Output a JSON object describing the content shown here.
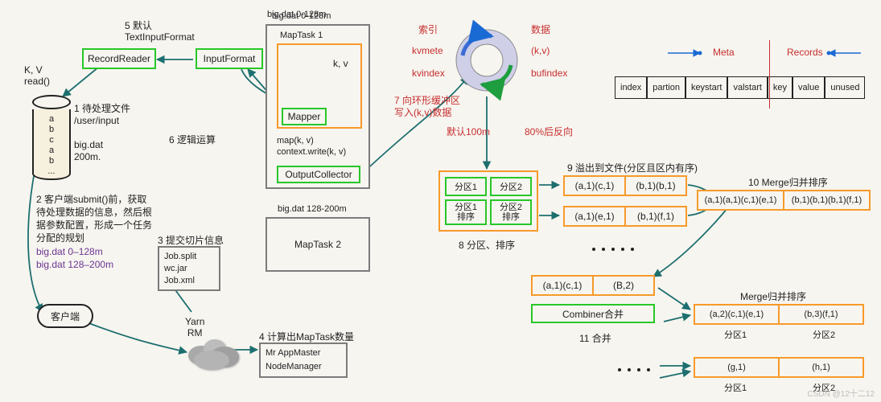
{
  "colors": {
    "green": "#28c728",
    "orange": "#f79a2a",
    "grey": "#7b7b7b",
    "red": "#c62e2e",
    "purple": "#6a3590",
    "blue": "#1a6ad4",
    "bg": "#f7f5f0",
    "cloud": "#a9a9a9",
    "ringBlue": "#3b6bd4",
    "ringGreen": "#1e9e3e"
  },
  "left": {
    "kv": "K, V\nread()",
    "cyl_letters": [
      "a",
      "b",
      "c",
      "a",
      "b",
      "..."
    ],
    "step1": "1 待处理文件\n/user/input\n\nbig.dat\n200m.",
    "step2": "2 客户端submit()前，获取\n待处理数据的信息，然后根\n据参数配置，形成一个任务\n分配的规划",
    "splits": [
      "big.dat 0–128m",
      "big.dat 128–200m"
    ],
    "client": "客户端",
    "yarn": "Yarn\nRM"
  },
  "top": {
    "step5": "5 默认\nTextInputFormat",
    "recordReader": "RecordReader",
    "inputFormat": "InputFormat",
    "step6": "6 逻辑运算"
  },
  "maptask1": {
    "title": "big.dat 0-128m",
    "sub": "MapTask 1",
    "mapper": "Mapper",
    "kv": "k, v",
    "code": "map(k, v)\ncontext.write(k, v)",
    "output": "OutputCollector"
  },
  "maptask2": {
    "title": "big.dat 128-200m",
    "sub": "MapTask 2"
  },
  "step3": {
    "title": "3 提交切片信息",
    "items": [
      "Job.split",
      "wc.jar",
      "Job.xml"
    ]
  },
  "step4": {
    "title": "4 计算出MapTask数量",
    "items": [
      "Mr AppMaster",
      "NodeManager"
    ]
  },
  "ring": {
    "left_top": "索引",
    "right_top": "数据",
    "left_mid": "kvmete",
    "right_mid": "(k,v)",
    "left_bot": "kvindex",
    "right_bot": "bufindex",
    "step7": "7 向环形缓冲区\n写入(k,v)数据",
    "below_left": "默认100m",
    "below_right": "80%后反向"
  },
  "partition": {
    "cells": [
      "分区1",
      "分区2",
      "分区1\n排序",
      "分区2\n排序"
    ],
    "caption": "8 分区、排序"
  },
  "spill": {
    "title": "9 溢出到文件(分区且区内有序)",
    "row1": [
      "(a,1)(c,1)",
      "(b,1)(b,1)"
    ],
    "row2": [
      "(a,1)(e,1)",
      "(b,1)(f,1)"
    ]
  },
  "merge10": {
    "title": "10 Merge归并排序",
    "row": [
      "(a,1)(a,1)(c,1)(e,1)",
      "(b,1)(b,1)(b,1)(f,1)"
    ]
  },
  "combine": {
    "row": [
      "(a,1)(c,1)",
      "(B,2)"
    ],
    "bar": "Combiner合并",
    "caption": "11 合并"
  },
  "mergeFinal": {
    "title": "Merge归并排序",
    "rowA": [
      "(a,2)(c,1)(e,1)",
      "(b,3)(f,1)"
    ],
    "zonesA": [
      "分区1",
      "分区2"
    ],
    "rowB": [
      "(g,1)",
      "(h,1)"
    ],
    "zonesB": [
      "分区1",
      "分区2"
    ]
  },
  "buffer": {
    "meta": "Meta",
    "records": "Records",
    "cells": [
      "index",
      "partion",
      "keystart",
      "valstart",
      "key",
      "value",
      "unused"
    ]
  },
  "watermark": "CSDN @12十二12"
}
